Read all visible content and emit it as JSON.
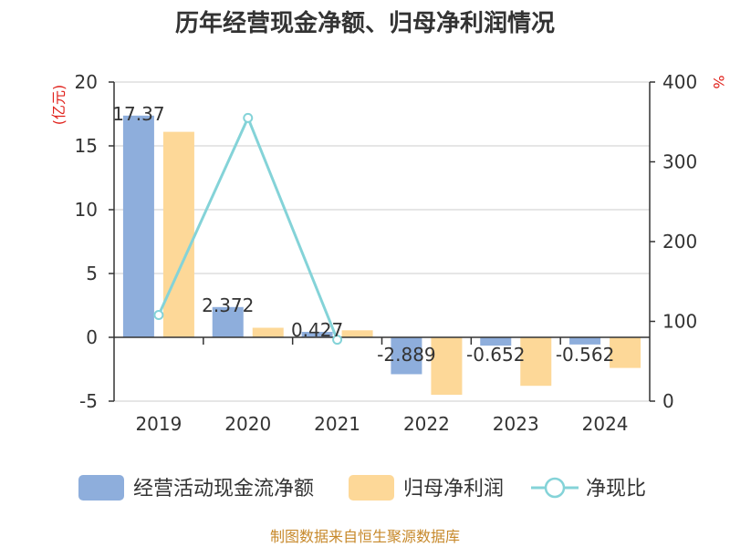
{
  "chart_data": {
    "type": "bar",
    "title": "历年经营现金净额、归母净利润情况",
    "categories": [
      "2019",
      "2020",
      "2021",
      "2022",
      "2023",
      "2024"
    ],
    "series": [
      {
        "name": "经营活动现金流净额",
        "type": "bar",
        "axis": "left",
        "color": "#8eaedc",
        "values": [
          17.37,
          2.372,
          0.427,
          -2.889,
          -0.652,
          -0.562
        ],
        "labels": [
          "17.37",
          "2.372",
          "0.427",
          "-2.889",
          "-0.652",
          "-0.562"
        ]
      },
      {
        "name": "归母净利润",
        "type": "bar",
        "axis": "left",
        "color": "#fdd898",
        "values": [
          16.1,
          0.75,
          0.55,
          -4.5,
          -3.8,
          -2.4
        ]
      },
      {
        "name": "净现比",
        "type": "line",
        "axis": "right",
        "color": "#84d3d8",
        "values": [
          108,
          355,
          77,
          null,
          null,
          null
        ]
      }
    ],
    "y_left": {
      "unit": "(亿元)",
      "min": -5,
      "max": 20,
      "ticks": [
        20,
        15,
        10,
        5,
        0,
        -5
      ]
    },
    "y_right": {
      "unit": "%",
      "min": 0,
      "max": 400,
      "ticks": [
        400,
        300,
        200,
        100,
        0
      ]
    },
    "grid": true,
    "legend_position": "bottom",
    "source": "制图数据来自恒生聚源数据库"
  }
}
